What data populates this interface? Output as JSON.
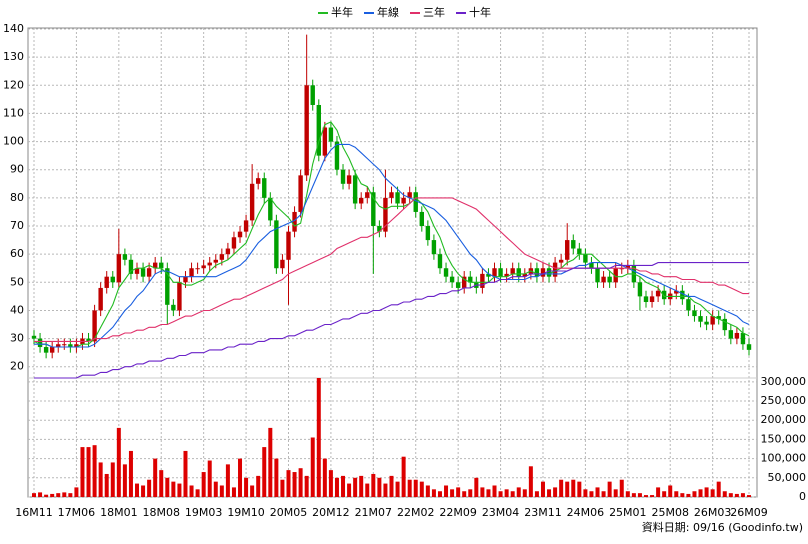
{
  "chart_data": {
    "type": "candlestick",
    "legend": "top",
    "grid": true,
    "footer": "資料日期: 09/16 (Goodinfo.tw)",
    "up_color": "#c00000",
    "down_color": "#00a000",
    "categories": [
      "16M11",
      null,
      null,
      null,
      null,
      null,
      null,
      "17M06",
      null,
      null,
      null,
      null,
      null,
      null,
      "18M01",
      null,
      null,
      null,
      null,
      null,
      null,
      "18M08",
      null,
      null,
      null,
      null,
      null,
      null,
      "19M03",
      null,
      null,
      null,
      null,
      null,
      null,
      "19M10",
      null,
      null,
      null,
      null,
      null,
      null,
      "20M05",
      null,
      null,
      null,
      null,
      null,
      null,
      "20M12",
      null,
      null,
      null,
      null,
      null,
      null,
      "21M07",
      null,
      null,
      null,
      null,
      null,
      null,
      "22M02",
      null,
      null,
      null,
      null,
      null,
      null,
      "22M09",
      null,
      null,
      null,
      null,
      null,
      null,
      "23M04",
      null,
      null,
      null,
      null,
      null,
      null,
      "23M11",
      null,
      null,
      null,
      null,
      null,
      null,
      "24M06",
      null,
      null,
      null,
      null,
      null,
      null,
      "25M01",
      null,
      null,
      null,
      null,
      null,
      null,
      "25M08",
      null,
      null,
      null,
      null,
      null,
      null,
      "26M03",
      null,
      null,
      null,
      null,
      null,
      "26M09"
    ],
    "open": [
      31,
      30,
      27,
      25,
      27,
      28,
      28,
      27,
      28,
      30,
      29,
      40,
      48,
      52,
      50,
      60,
      58,
      53,
      55,
      52,
      55,
      57,
      55,
      42,
      40,
      50,
      52,
      55,
      55,
      56,
      57,
      58,
      60,
      62,
      66,
      68,
      72,
      85,
      87,
      80,
      72,
      55,
      58,
      68,
      75,
      88,
      120,
      113,
      95,
      105,
      100,
      90,
      85,
      88,
      78,
      80,
      82,
      70,
      68,
      80,
      82,
      78,
      80,
      82,
      75,
      70,
      65,
      60,
      55,
      52,
      50,
      48,
      52,
      50,
      48,
      53,
      52,
      55,
      52,
      53,
      55,
      52,
      53,
      55,
      52,
      55,
      52,
      57,
      58,
      65,
      62,
      60,
      57,
      55,
      50,
      52,
      50,
      55,
      55,
      56,
      50,
      45,
      43,
      45,
      47,
      44,
      46,
      47,
      44,
      40,
      38,
      36,
      35,
      38,
      37,
      33,
      30,
      32,
      28
    ],
    "high": [
      33,
      32,
      29,
      29,
      30,
      30,
      30,
      30,
      32,
      32,
      42,
      50,
      54,
      54,
      69,
      62,
      60,
      57,
      57,
      57,
      59,
      59,
      57,
      44,
      52,
      54,
      57,
      57,
      58,
      59,
      60,
      62,
      64,
      68,
      70,
      74,
      92,
      89,
      89,
      82,
      74,
      60,
      70,
      77,
      90,
      138,
      122,
      115,
      107,
      107,
      102,
      92,
      90,
      90,
      82,
      84,
      84,
      72,
      90,
      84,
      84,
      82,
      84,
      84,
      77,
      72,
      67,
      62,
      57,
      54,
      52,
      54,
      54,
      52,
      55,
      55,
      57,
      57,
      55,
      57,
      57,
      55,
      57,
      57,
      57,
      57,
      59,
      60,
      71,
      67,
      64,
      62,
      59,
      57,
      54,
      54,
      57,
      57,
      58,
      58,
      52,
      47,
      47,
      49,
      49,
      48,
      49,
      49,
      46,
      42,
      40,
      38,
      40,
      40,
      39,
      35,
      34,
      34,
      30
    ],
    "low": [
      28,
      25,
      23,
      23,
      25,
      26,
      25,
      25,
      26,
      27,
      27,
      38,
      46,
      48,
      48,
      56,
      51,
      51,
      50,
      50,
      53,
      53,
      35,
      38,
      38,
      48,
      50,
      53,
      53,
      54,
      55,
      56,
      58,
      60,
      64,
      66,
      70,
      83,
      78,
      70,
      53,
      53,
      42,
      66,
      73,
      86,
      111,
      93,
      93,
      98,
      88,
      83,
      83,
      76,
      76,
      78,
      53,
      66,
      66,
      78,
      76,
      76,
      78,
      73,
      68,
      63,
      58,
      53,
      50,
      48,
      46,
      46,
      48,
      46,
      46,
      50,
      50,
      50,
      50,
      51,
      50,
      50,
      51,
      50,
      50,
      50,
      50,
      55,
      56,
      60,
      58,
      55,
      53,
      48,
      48,
      48,
      48,
      53,
      53,
      48,
      40,
      41,
      41,
      43,
      42,
      42,
      44,
      42,
      38,
      36,
      34,
      33,
      33,
      35,
      31,
      28,
      28,
      26,
      24
    ],
    "close": [
      30,
      27,
      25,
      27,
      28,
      28,
      27,
      28,
      30,
      29,
      40,
      48,
      52,
      50,
      60,
      58,
      53,
      55,
      52,
      55,
      57,
      55,
      42,
      40,
      50,
      52,
      55,
      55,
      56,
      57,
      58,
      60,
      62,
      66,
      68,
      72,
      85,
      87,
      80,
      72,
      55,
      58,
      68,
      75,
      88,
      120,
      113,
      95,
      105,
      100,
      90,
      85,
      88,
      78,
      80,
      82,
      70,
      68,
      80,
      82,
      78,
      80,
      82,
      75,
      70,
      65,
      60,
      55,
      52,
      50,
      48,
      52,
      50,
      48,
      53,
      52,
      55,
      52,
      53,
      55,
      52,
      53,
      55,
      52,
      55,
      52,
      57,
      58,
      65,
      62,
      60,
      57,
      55,
      50,
      52,
      50,
      55,
      55,
      56,
      50,
      45,
      43,
      45,
      47,
      44,
      46,
      47,
      44,
      40,
      38,
      36,
      35,
      38,
      37,
      33,
      30,
      32,
      28,
      26
    ],
    "ylim": [
      16,
      140
    ],
    "yticks": [
      20,
      30,
      40,
      50,
      60,
      70,
      80,
      90,
      100,
      110,
      120,
      130,
      140
    ],
    "series": [
      {
        "name": "半年",
        "color": "#22bb22",
        "values": [
          29,
          28,
          28,
          27,
          27,
          27,
          27,
          27,
          28,
          28,
          30,
          34,
          38,
          42,
          48,
          51,
          54,
          55,
          55,
          56,
          55,
          55,
          53,
          50,
          50,
          49,
          49,
          50,
          51,
          54,
          56,
          57,
          58,
          60,
          62,
          64,
          69,
          74,
          78,
          80,
          77,
          75,
          73,
          70,
          71,
          81,
          92,
          100,
          106,
          107,
          104,
          98,
          94,
          89,
          85,
          84,
          80,
          77,
          76,
          77,
          77,
          77,
          78,
          80,
          78,
          75,
          70,
          66,
          60,
          56,
          53,
          51,
          50,
          50,
          50,
          50,
          52,
          52,
          52,
          53,
          53,
          53,
          54,
          53,
          53,
          53,
          54,
          55,
          57,
          58,
          60,
          60,
          60,
          58,
          56,
          54,
          52,
          52,
          53,
          53,
          52,
          50,
          49,
          48,
          45,
          45,
          45,
          45,
          45,
          43,
          42,
          40,
          38,
          37,
          36,
          35,
          34,
          32,
          31
        ]
      },
      {
        "name": "年線",
        "color": "#1a5fe0",
        "values": [
          28,
          28,
          28,
          27,
          27,
          27,
          27,
          27,
          27,
          27,
          28,
          30,
          32,
          34,
          37,
          40,
          42,
          45,
          47,
          50,
          53,
          54,
          54,
          53,
          52,
          52,
          52,
          52,
          52,
          52,
          52,
          53,
          54,
          55,
          56,
          58,
          61,
          64,
          66,
          68,
          69,
          70,
          71,
          72,
          74,
          79,
          84,
          89,
          94,
          97,
          99,
          99,
          99,
          98,
          96,
          94,
          92,
          90,
          87,
          85,
          83,
          81,
          80,
          79,
          78,
          77,
          76,
          74,
          72,
          69,
          66,
          63,
          60,
          58,
          55,
          53,
          52,
          51,
          51,
          51,
          51,
          51,
          52,
          52,
          53,
          53,
          53,
          53,
          54,
          55,
          56,
          56,
          57,
          57,
          57,
          57,
          57,
          56,
          55,
          54,
          53,
          52,
          51,
          50,
          49,
          48,
          47,
          46,
          45,
          45,
          44,
          43,
          42,
          41,
          40,
          39,
          38,
          36,
          35
        ]
      },
      {
        "name": "三年",
        "color": "#e0306a",
        "values": [
          29,
          29,
          29,
          29,
          29,
          29,
          29,
          29,
          29,
          29,
          30,
          30,
          30,
          31,
          31,
          32,
          32,
          33,
          33,
          34,
          34,
          35,
          35,
          36,
          37,
          38,
          38,
          39,
          40,
          40,
          41,
          42,
          43,
          44,
          44,
          45,
          46,
          47,
          48,
          49,
          50,
          51,
          53,
          54,
          55,
          56,
          57,
          58,
          59,
          60,
          62,
          63,
          64,
          65,
          66,
          66,
          67,
          68,
          70,
          72,
          74,
          76,
          78,
          80,
          80,
          80,
          80,
          80,
          80,
          80,
          79,
          78,
          77,
          76,
          74,
          72,
          70,
          68,
          66,
          64,
          62,
          60,
          59,
          58,
          57,
          56,
          55,
          55,
          55,
          55,
          55,
          55,
          55,
          55,
          55,
          55,
          55,
          55,
          55,
          55,
          54,
          54,
          53,
          53,
          52,
          52,
          52,
          51,
          51,
          51,
          50,
          50,
          50,
          49,
          49,
          48,
          47,
          46,
          46
        ]
      },
      {
        "name": "十年",
        "color": "#6a22c8",
        "values": [
          16,
          16,
          16,
          16,
          16,
          16,
          16,
          16,
          17,
          17,
          17,
          18,
          18,
          19,
          19,
          20,
          20,
          21,
          21,
          22,
          22,
          22,
          23,
          23,
          24,
          24,
          25,
          25,
          25,
          26,
          26,
          26,
          27,
          27,
          28,
          28,
          28,
          29,
          29,
          30,
          30,
          30,
          31,
          31,
          32,
          33,
          33,
          34,
          35,
          35,
          36,
          37,
          37,
          38,
          39,
          39,
          40,
          40,
          41,
          42,
          42,
          43,
          43,
          44,
          44,
          45,
          45,
          46,
          46,
          47,
          47,
          48,
          48,
          49,
          49,
          50,
          50,
          51,
          51,
          52,
          52,
          52,
          53,
          53,
          53,
          54,
          54,
          54,
          54,
          55,
          55,
          55,
          55,
          55,
          55,
          55,
          56,
          56,
          56,
          56,
          56,
          56,
          56,
          57,
          57,
          57,
          57,
          57,
          57,
          57,
          57,
          57,
          57,
          57,
          57,
          57,
          57,
          57,
          57
        ]
      }
    ],
    "volume": {
      "color": "#dd0000",
      "values": [
        10000,
        12000,
        6000,
        8000,
        10000,
        12000,
        10000,
        25000,
        130000,
        130000,
        135000,
        90000,
        60000,
        90000,
        180000,
        85000,
        120000,
        35000,
        30000,
        45000,
        100000,
        70000,
        50000,
        40000,
        35000,
        120000,
        30000,
        20000,
        65000,
        95000,
        40000,
        30000,
        85000,
        25000,
        100000,
        50000,
        30000,
        55000,
        130000,
        180000,
        100000,
        45000,
        70000,
        65000,
        75000,
        55000,
        155000,
        310000,
        100000,
        70000,
        50000,
        55000,
        35000,
        50000,
        55000,
        35000,
        60000,
        50000,
        35000,
        55000,
        40000,
        105000,
        45000,
        45000,
        40000,
        30000,
        20000,
        15000,
        30000,
        20000,
        25000,
        15000,
        20000,
        50000,
        25000,
        20000,
        30000,
        15000,
        20000,
        15000,
        25000,
        20000,
        80000,
        15000,
        40000,
        20000,
        25000,
        45000,
        40000,
        45000,
        40000,
        20000,
        15000,
        25000,
        15000,
        40000,
        20000,
        45000,
        15000,
        10000,
        10000,
        5000,
        5000,
        25000,
        15000,
        30000,
        15000,
        10000,
        8000,
        15000,
        20000,
        25000,
        20000,
        40000,
        15000,
        10000,
        8000,
        10000,
        5000
      ],
      "y2lim": [
        0,
        310000
      ],
      "y2ticks": [
        0,
        {
          "value": 50000,
          "label": "50,000"
        },
        {
          "value": 100000,
          "label": "100,000"
        },
        {
          "value": 150000,
          "label": "150,000"
        },
        {
          "value": 200000,
          "label": "200,000"
        },
        {
          "value": 250000,
          "label": "250,000"
        },
        {
          "value": 300000,
          "label": "300,000"
        }
      ]
    }
  }
}
